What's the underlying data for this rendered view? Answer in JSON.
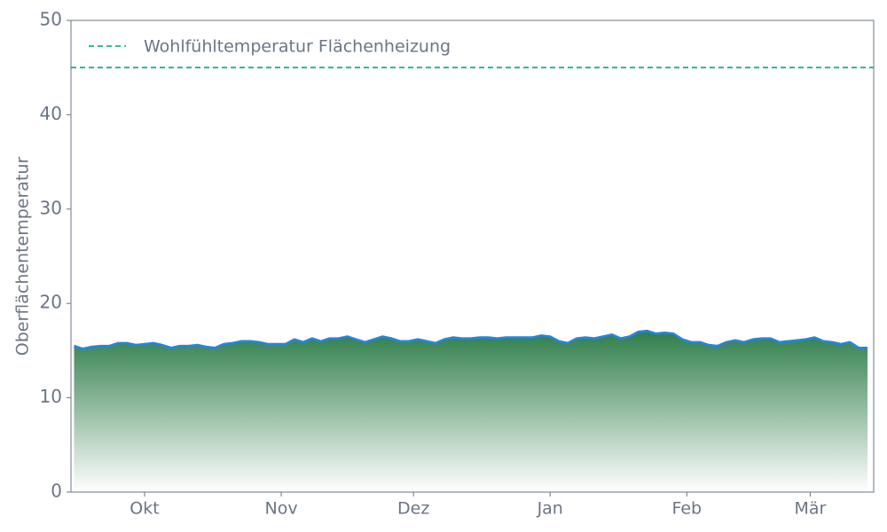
{
  "chart_data": {
    "type": "area",
    "y_label": "Oberflächentemperatur",
    "x": [
      -16,
      -14,
      -12,
      -10,
      -8,
      -6,
      -4,
      -2,
      0,
      2,
      4,
      6,
      8,
      10,
      12,
      14,
      16,
      18,
      20,
      22,
      24,
      26,
      28,
      30,
      32,
      34,
      36,
      38,
      40,
      42,
      44,
      46,
      48,
      50,
      52,
      54,
      56,
      58,
      60,
      62,
      64,
      66,
      68,
      70,
      72,
      74,
      76,
      78,
      80,
      82,
      84,
      86,
      88,
      90,
      92,
      94,
      96,
      98,
      100,
      102,
      104,
      106,
      108,
      110,
      112,
      114,
      116,
      118,
      120,
      122,
      124,
      126,
      128,
      130,
      132,
      134,
      136,
      138,
      140,
      142,
      144,
      146,
      148,
      150,
      152,
      154,
      156,
      158,
      160,
      162,
      164
    ],
    "series": [
      {
        "color": "#1e88e5",
        "fill_top": "#2f7d4a",
        "fill_bottom": "#ffffff",
        "values": [
          15.5,
          15.2,
          15.4,
          15.5,
          15.5,
          15.8,
          15.8,
          15.6,
          15.7,
          15.8,
          15.6,
          15.3,
          15.5,
          15.5,
          15.6,
          15.4,
          15.3,
          15.7,
          15.8,
          16.0,
          16.0,
          15.9,
          15.7,
          15.7,
          15.7,
          16.2,
          15.9,
          16.3,
          16.0,
          16.3,
          16.3,
          16.5,
          16.2,
          15.9,
          16.2,
          16.5,
          16.3,
          16.0,
          16.0,
          16.2,
          16.0,
          15.8,
          16.2,
          16.4,
          16.3,
          16.3,
          16.4,
          16.4,
          16.3,
          16.4,
          16.4,
          16.4,
          16.4,
          16.6,
          16.5,
          16.0,
          15.8,
          16.3,
          16.4,
          16.3,
          16.5,
          16.7,
          16.3,
          16.5,
          17.0,
          17.1,
          16.8,
          16.9,
          16.8,
          16.2,
          15.9,
          15.9,
          15.6,
          15.5,
          15.9,
          16.1,
          15.9,
          16.2,
          16.3,
          16.3,
          15.9,
          16.0,
          16.1,
          16.2,
          16.4,
          16.0,
          15.9,
          15.7,
          15.9,
          15.3,
          15.3
        ]
      }
    ],
    "reference_lines": [
      {
        "value": 45,
        "label": "Wohlfühltemperatur Flächenheizung",
        "color": "#1fb08a",
        "dashed": true
      }
    ],
    "legend": "upper left",
    "xlim": [
      -16.7,
      165.4
    ],
    "xticks": [
      {
        "value": 0,
        "label": "Okt"
      },
      {
        "value": 31,
        "label": "Nov"
      },
      {
        "value": 61,
        "label": "Dez"
      },
      {
        "value": 92,
        "label": "Jan"
      },
      {
        "value": 123,
        "label": "Feb"
      },
      {
        "value": 151,
        "label": "Mär"
      }
    ],
    "ylim": [
      0,
      50
    ],
    "yticks": [
      0,
      10,
      20,
      30,
      40,
      50
    ],
    "grid": false
  }
}
